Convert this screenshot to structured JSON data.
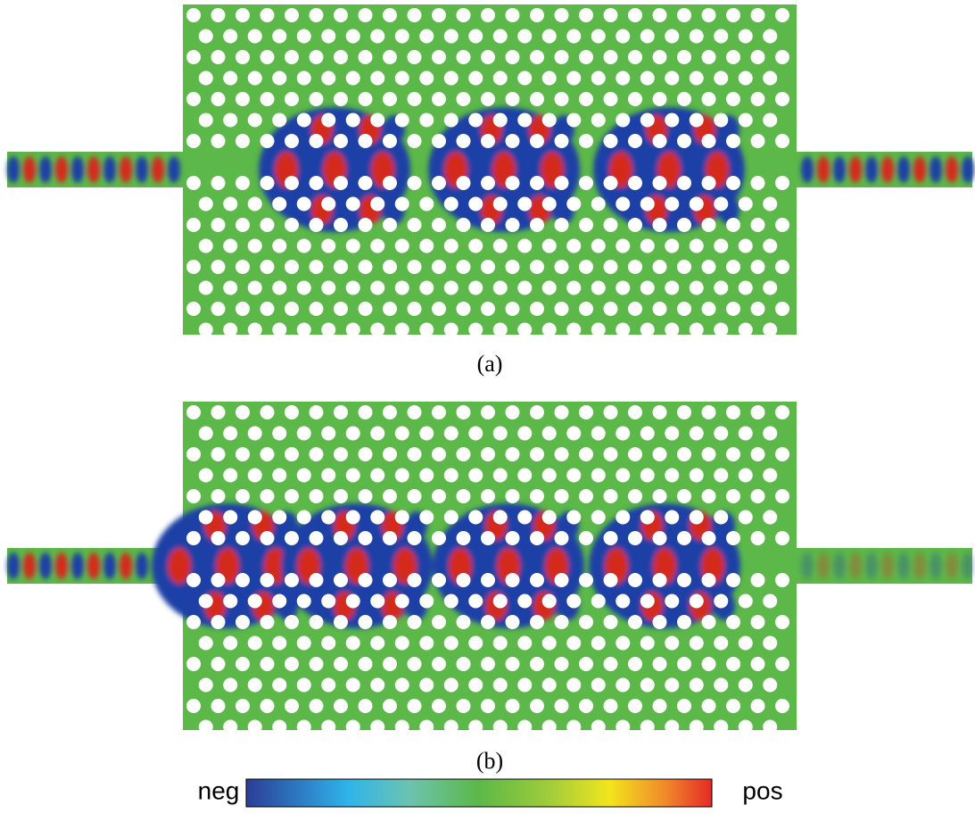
{
  "panels": [
    {
      "caption": "(a)"
    },
    {
      "caption": "(b)"
    }
  ],
  "colorbar": {
    "min_label": "neg",
    "max_label": "pos"
  }
}
